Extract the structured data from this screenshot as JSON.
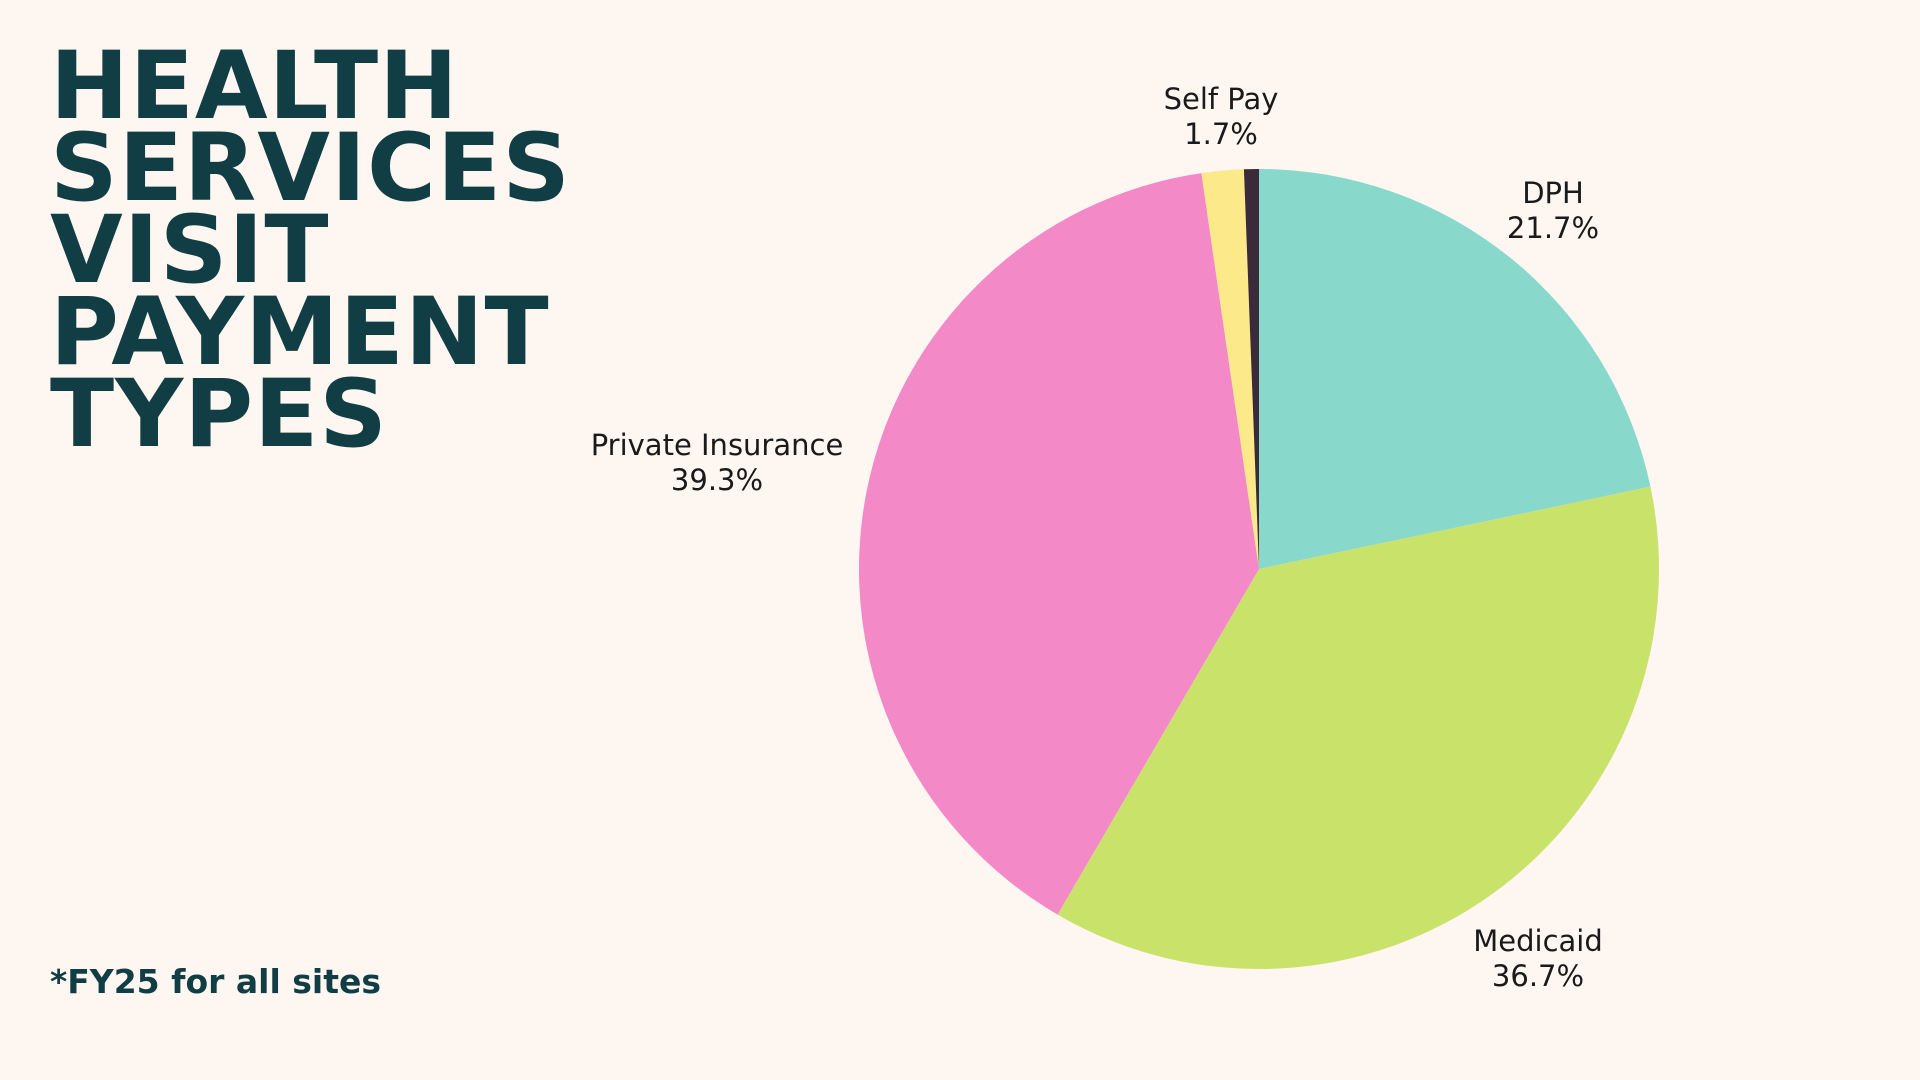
{
  "title_lines": [
    "HEALTH",
    "SERVICES",
    "VISIT",
    "PAYMENT",
    "TYPES"
  ],
  "footnote": "*FY25 for all sites",
  "chart_data": {
    "type": "pie",
    "title": "HEALTH SERVICES VISIT PAYMENT TYPES",
    "start_angle_deg": 0,
    "direction": "clockwise",
    "slices": [
      {
        "label": "DPH",
        "value": 21.7,
        "display": "21.7%",
        "color": "#88d8cb"
      },
      {
        "label": "Medicaid",
        "value": 36.7,
        "display": "36.7%",
        "color": "#c9e26a"
      },
      {
        "label": "Private Insurance",
        "value": 39.3,
        "display": "39.3%",
        "color": "#f489c8"
      },
      {
        "label": "Self Pay",
        "value": 1.7,
        "display": "1.7%",
        "color": "#fcea8a"
      },
      {
        "label": "",
        "value": 0.6,
        "display": "",
        "color": "#3a2a3a"
      }
    ]
  }
}
